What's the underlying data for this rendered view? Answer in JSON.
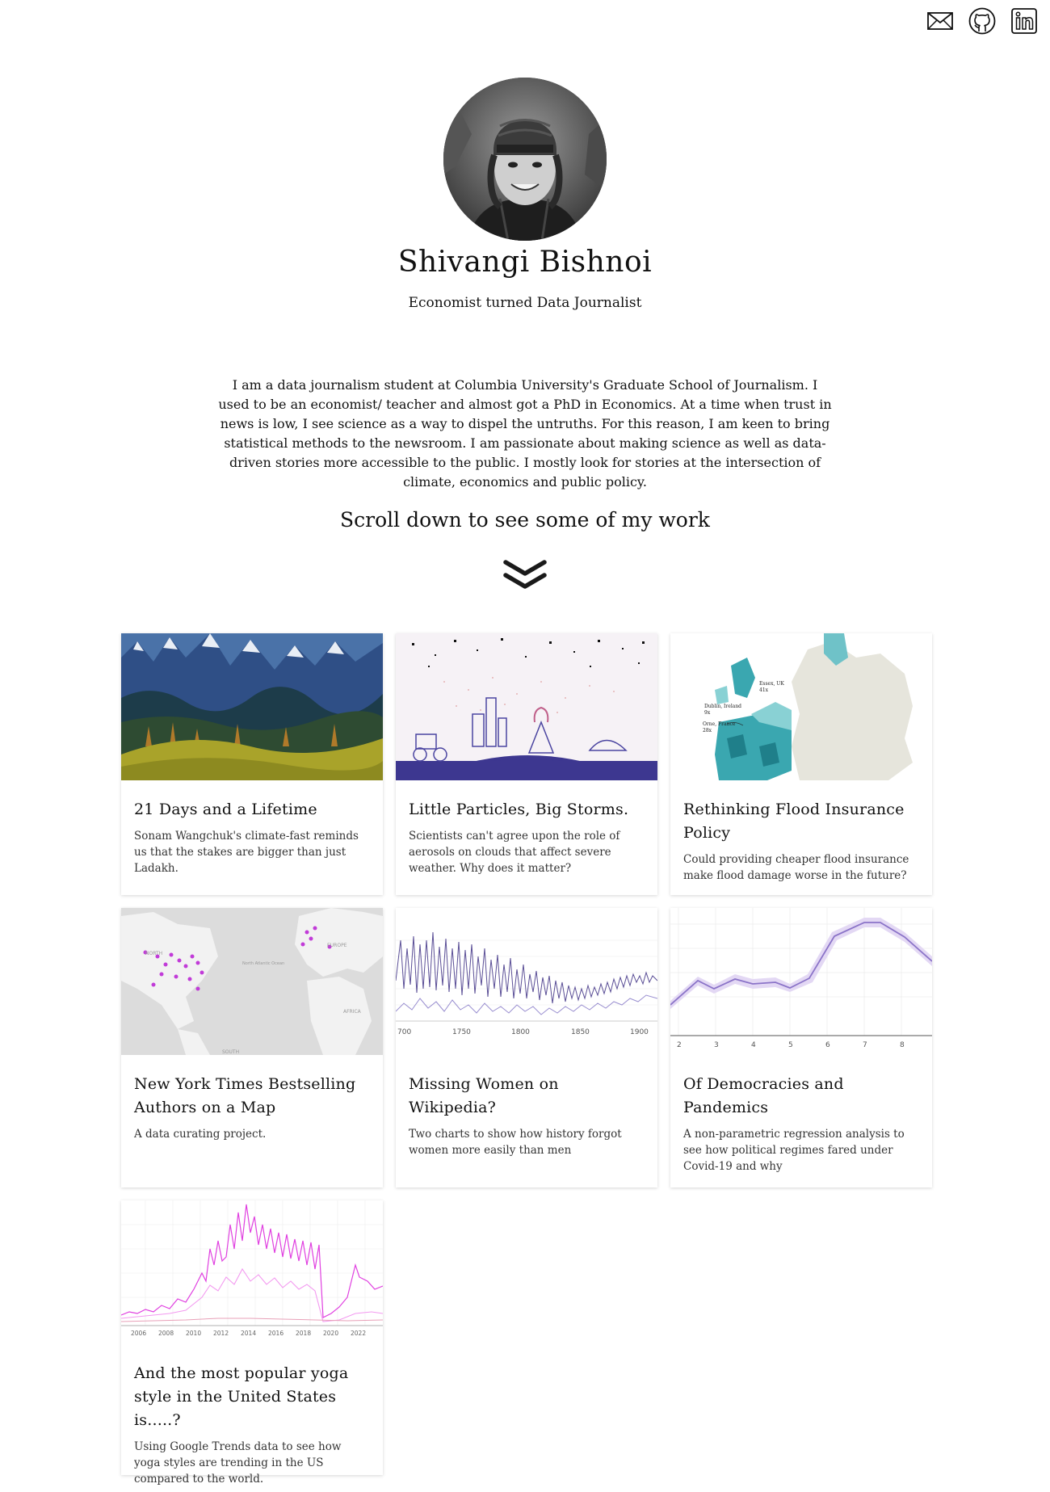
{
  "social": {
    "items": [
      {
        "id": "email",
        "icon": "envelope-icon"
      },
      {
        "id": "github",
        "icon": "github-icon"
      },
      {
        "id": "linkedin",
        "icon": "linkedin-icon"
      }
    ]
  },
  "profile": {
    "name": "Shivangi Bishnoi",
    "tagline": "Economist turned Data Journalist",
    "bio": "I am a data journalism student at Columbia University's Graduate School of Journalism. I used to be an economist/ teacher and almost got a PhD in Economics. At a time when trust in news is low, I see science as a way to dispel the untruths. For this reason, I am keen to bring statistical methods to the newsroom. I am passionate about making science as well as data-driven stories more accessible to the public. I mostly look for stories at the intersection of climate, economics and public policy.",
    "scroll_prompt": "Scroll down to see some of my work",
    "scroll_icon": "double-chevron-down-icon"
  },
  "projects": [
    {
      "title": "21 Days and a Lifetime",
      "desc": "Sonam Wangchuk's climate-fast reminds us that the stakes are bigger than just Ladakh."
    },
    {
      "title": "Little Particles, Big Storms.",
      "desc": "Scientists can't agree upon the role of aerosols on clouds that affect severe weather. Why does it matter?"
    },
    {
      "title": "Rethinking Flood Insurance Policy",
      "desc": "Could providing cheaper flood insurance make flood damage worse in the future?"
    },
    {
      "title": "New York Times Bestselling Authors on a Map",
      "desc": "A data curating project."
    },
    {
      "title": "Missing Women on Wikipedia?",
      "desc": "Two charts to show how history forgot women more easily than men"
    },
    {
      "title": "Of Democracies and Pandemics",
      "desc": "A non-parametric regression analysis to see how political regimes fared under Covid-19 and why"
    },
    {
      "title": "And the most popular yoga style in the United States is.....?",
      "desc": "Using Google Trends data to see how yoga styles are trending in the US compared to the world."
    }
  ],
  "thumb_labels": {
    "map_labels": [
      "Essex, UK",
      "Dublin, Ireland",
      "Orne, France"
    ],
    "map_values": [
      "41x",
      "9x",
      "28x"
    ],
    "world_labels": [
      "NORTH",
      "North Atlantic Ocean",
      "EUROPE",
      "AFRICA",
      "SOUTH"
    ],
    "wiki_axis": [
      "700",
      "1750",
      "1800",
      "1850",
      "1900"
    ],
    "dem_axis": [
      "2",
      "3",
      "4",
      "5",
      "6",
      "7",
      "8"
    ],
    "yoga_axis": [
      "2006",
      "2008",
      "2010",
      "2012",
      "2014",
      "2016",
      "2018",
      "2020",
      "2022"
    ]
  },
  "colors": {
    "text": "#111111",
    "purple": "#6b5fa8",
    "magenta": "#e040e0",
    "teal": "#3aa7b0"
  }
}
